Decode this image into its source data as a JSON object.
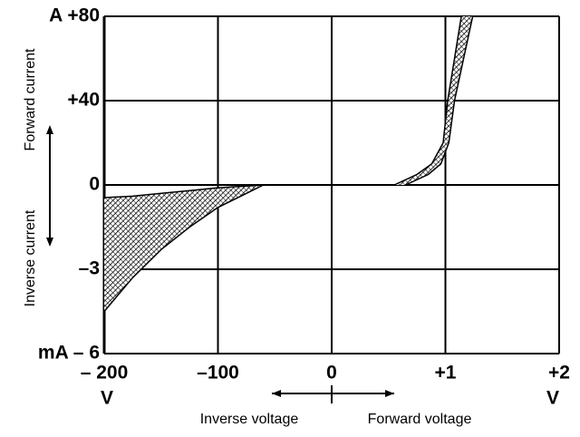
{
  "chart_data": [
    {
      "type": "band",
      "xlim": [
        -200,
        0
      ],
      "ylim": [
        -6,
        0
      ],
      "xticks": [
        {
          "value": -200,
          "label": "– 200"
        },
        {
          "value": -100,
          "label": "–100"
        }
      ],
      "yticks": [
        0,
        {
          "value": -3,
          "label": "–3"
        },
        {
          "value": -6,
          "label": "mA – 6"
        }
      ],
      "x_unit": "V",
      "x_label": "Inverse voltage",
      "y_label": "Inverse current",
      "color": "#000000",
      "x": [
        -200,
        -175,
        -150,
        -125,
        -100,
        -75,
        -60
      ],
      "series": [
        {
          "values": [
            -0.45,
            -0.4,
            -0.3,
            -0.2,
            -0.1,
            -0.04,
            0
          ]
        },
        {
          "values": [
            -4.5,
            -3.3,
            -2.3,
            -1.5,
            -0.8,
            -0.3,
            0
          ]
        }
      ]
    },
    {
      "type": "band-x",
      "xlim": [
        0,
        2
      ],
      "ylim": [
        0,
        80
      ],
      "xticks": [
        0,
        {
          "value": 1,
          "label": "+1"
        },
        {
          "value": 2,
          "label": "+2"
        }
      ],
      "yticks": [
        {
          "value": 40,
          "label": "+40"
        },
        {
          "value": 80,
          "label": "A +80"
        }
      ],
      "x_unit": "V",
      "x_label": "Forward voltage",
      "y_label": "Forward current",
      "color": "#000000",
      "y": [
        0,
        5,
        10,
        20,
        40,
        60,
        80
      ],
      "series": [
        {
          "values": [
            0.55,
            0.75,
            0.88,
            0.98,
            1.02,
            1.08,
            1.14
          ]
        },
        {
          "values": [
            0.65,
            0.85,
            0.96,
            1.03,
            1.08,
            1.16,
            1.24
          ]
        }
      ]
    }
  ]
}
